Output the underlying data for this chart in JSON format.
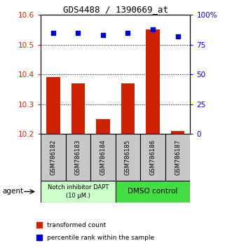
{
  "title": "GDS4488 / 1390669_at",
  "samples": [
    "GSM786182",
    "GSM786183",
    "GSM786184",
    "GSM786185",
    "GSM786186",
    "GSM786187"
  ],
  "red_values": [
    10.39,
    10.37,
    10.25,
    10.37,
    10.55,
    10.21
  ],
  "blue_values": [
    85,
    85,
    83,
    85,
    88,
    82
  ],
  "ylim_left": [
    10.2,
    10.6
  ],
  "ylim_right": [
    0,
    100
  ],
  "yticks_left": [
    10.2,
    10.3,
    10.4,
    10.5,
    10.6
  ],
  "yticks_right": [
    0,
    25,
    50,
    75,
    100
  ],
  "yticklabels_right": [
    "0",
    "25",
    "50",
    "75",
    "100%"
  ],
  "group1_label": "Notch inhibitor DAPT\n(10 μM.)",
  "group2_label": "DMSO control",
  "group1_color": "#ccffcc",
  "group2_color": "#44dd44",
  "gray_color": "#c8c8c8",
  "bar_color": "#cc2200",
  "dot_color": "#0000cc",
  "bar_bottom": 10.2,
  "legend_red": "transformed count",
  "legend_blue": "percentile rank within the sample",
  "agent_label": "agent"
}
